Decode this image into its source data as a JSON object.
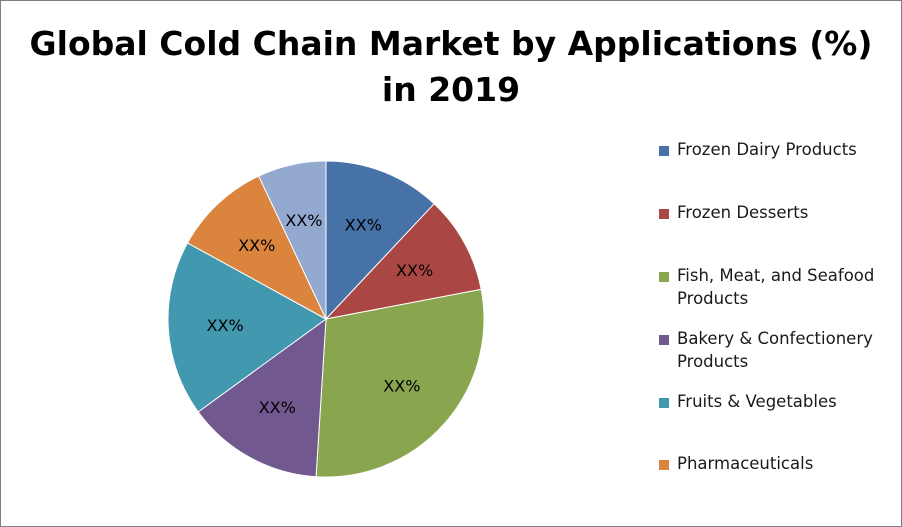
{
  "chart_data": {
    "type": "pie",
    "title_lines": [
      "Global Cold Chain Market by Applications (%)",
      "in 2019"
    ],
    "legend_placement": "right",
    "slices": [
      {
        "name": "Frozen Dairy Products",
        "value": 12,
        "label": "XX%",
        "color": "#4672A8"
      },
      {
        "name": "Frozen Desserts",
        "value": 10,
        "label": "XX%",
        "color": "#AA4643"
      },
      {
        "name": "Fish, Meat, and Seafood Products",
        "value": 29,
        "label": "XX%",
        "color": "#89A54E"
      },
      {
        "name": "Bakery & Confectionery Products",
        "value": 14,
        "label": "XX%",
        "color": "#71588F"
      },
      {
        "name": "Fruits & Vegetables",
        "value": 18,
        "label": "XX%",
        "color": "#4198AF"
      },
      {
        "name": "Pharmaceuticals",
        "value": 10,
        "label": "XX%",
        "color": "#DB843D"
      },
      {
        "name": "",
        "value": 7,
        "label": "XX%",
        "color": "#93A9CF"
      }
    ]
  }
}
